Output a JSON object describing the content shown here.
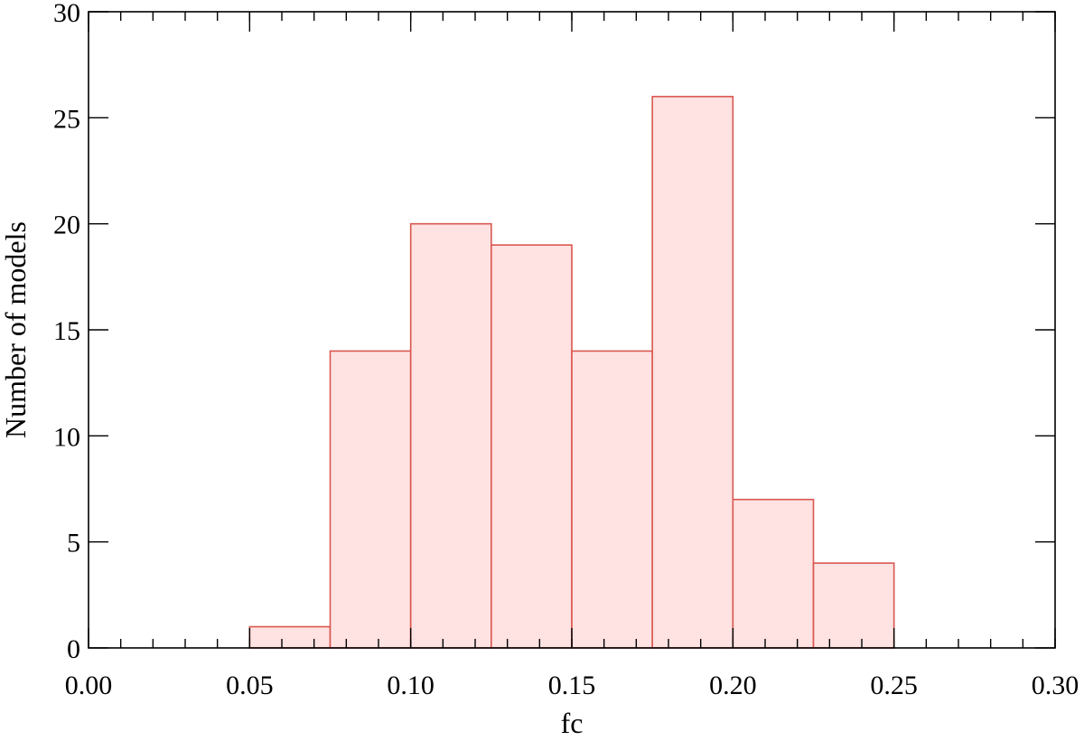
{
  "chart_data": {
    "type": "bar",
    "histogram": true,
    "bins": [
      {
        "x0": 0.05,
        "x1": 0.075,
        "count": 1
      },
      {
        "x0": 0.075,
        "x1": 0.1,
        "count": 14
      },
      {
        "x0": 0.1,
        "x1": 0.125,
        "count": 20
      },
      {
        "x0": 0.125,
        "x1": 0.15,
        "count": 19
      },
      {
        "x0": 0.15,
        "x1": 0.175,
        "count": 14
      },
      {
        "x0": 0.175,
        "x1": 0.2,
        "count": 26
      },
      {
        "x0": 0.2,
        "x1": 0.225,
        "count": 7
      },
      {
        "x0": 0.225,
        "x1": 0.25,
        "count": 4
      }
    ],
    "xlabel": "fc",
    "ylabel": "Number of models",
    "xlim": [
      0.0,
      0.3
    ],
    "ylim": [
      0,
      30
    ],
    "x_ticks": [
      "0.00",
      "0.05",
      "0.10",
      "0.15",
      "0.20",
      "0.25",
      "0.30"
    ],
    "y_ticks": [
      "0",
      "5",
      "10",
      "15",
      "20",
      "25",
      "30"
    ],
    "x_minor_step": 0.01,
    "grid": false,
    "legend": "none",
    "bar_fill_color": "#ffe2e2",
    "bar_edge_color": "#d9574f"
  }
}
